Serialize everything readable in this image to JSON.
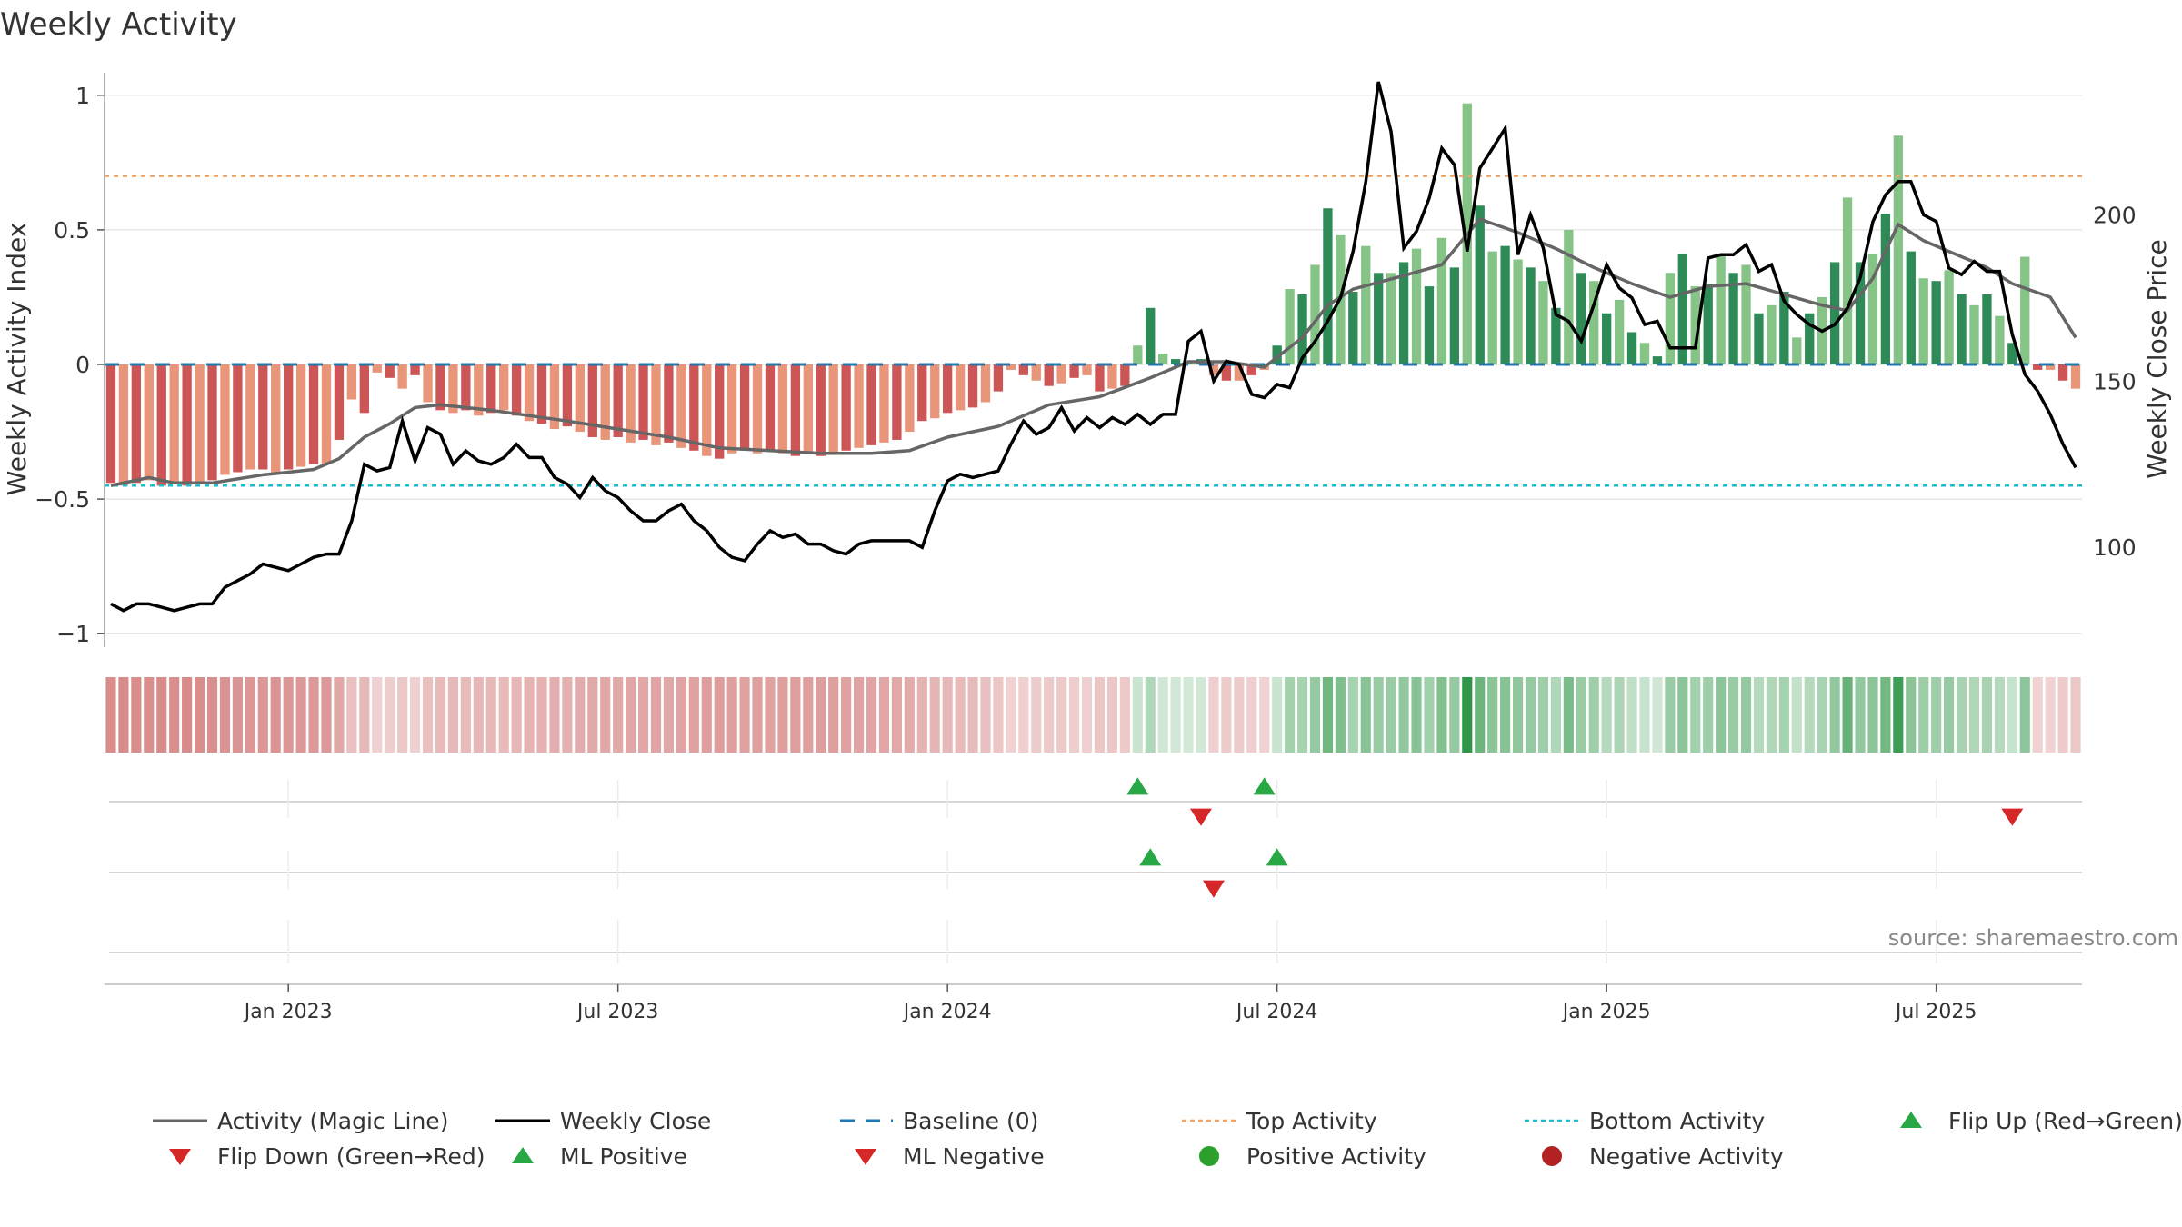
{
  "chart_data": {
    "type": "bar",
    "title": "Weekly Activity",
    "source": "source: sharemaestro.com",
    "y_left": {
      "label": "Weekly Activity Index",
      "range": [
        -1.05,
        1.05
      ],
      "ticks": [
        1,
        0.5,
        0,
        -0.5,
        -1
      ],
      "tick_labels": [
        "1",
        "0.5",
        "0",
        "−0.5",
        "−1"
      ]
    },
    "y_right": {
      "label": "Weekly Close Price",
      "range": [
        70,
        240
      ],
      "ticks": [
        200,
        150,
        100
      ],
      "tick_labels": [
        "200",
        "150",
        "100"
      ]
    },
    "x_ticks": [
      {
        "label": "Jan 2023",
        "week": 14
      },
      {
        "label": "Jul 2023",
        "week": 40
      },
      {
        "label": "Jan 2024",
        "week": 66
      },
      {
        "label": "Jul 2024",
        "week": 92
      },
      {
        "label": "Jan 2025",
        "week": 118
      },
      {
        "label": "Jul 2025",
        "week": 144
      }
    ],
    "levels": {
      "top": 0.7,
      "bottom": -0.45,
      "baseline": 0
    },
    "weeks": 156,
    "activity_keypoints": [
      [
        0,
        -0.44
      ],
      [
        1,
        -0.45
      ],
      [
        2,
        -0.44
      ],
      [
        3,
        -0.43
      ],
      [
        4,
        -0.45
      ],
      [
        5,
        -0.44
      ],
      [
        6,
        -0.45
      ],
      [
        7,
        -0.44
      ],
      [
        8,
        -0.43
      ],
      [
        9,
        -0.41
      ],
      [
        10,
        -0.4
      ],
      [
        11,
        -0.39
      ],
      [
        12,
        -0.39
      ],
      [
        13,
        -0.4
      ],
      [
        14,
        -0.39
      ],
      [
        15,
        -0.38
      ],
      [
        16,
        -0.37
      ],
      [
        17,
        -0.37
      ],
      [
        18,
        -0.28
      ],
      [
        19,
        -0.13
      ],
      [
        20,
        -0.18
      ],
      [
        21,
        -0.03
      ],
      [
        22,
        -0.05
      ],
      [
        23,
        -0.09
      ],
      [
        24,
        -0.04
      ],
      [
        25,
        -0.14
      ],
      [
        26,
        -0.17
      ],
      [
        27,
        -0.18
      ],
      [
        28,
        -0.17
      ],
      [
        29,
        -0.19
      ],
      [
        30,
        -0.18
      ],
      [
        31,
        -0.17
      ],
      [
        32,
        -0.19
      ],
      [
        33,
        -0.21
      ],
      [
        34,
        -0.22
      ],
      [
        35,
        -0.24
      ],
      [
        36,
        -0.23
      ],
      [
        37,
        -0.25
      ],
      [
        38,
        -0.27
      ],
      [
        39,
        -0.28
      ],
      [
        40,
        -0.27
      ],
      [
        41,
        -0.29
      ],
      [
        42,
        -0.28
      ],
      [
        43,
        -0.3
      ],
      [
        44,
        -0.29
      ],
      [
        45,
        -0.31
      ],
      [
        46,
        -0.32
      ],
      [
        47,
        -0.34
      ],
      [
        48,
        -0.35
      ],
      [
        49,
        -0.33
      ],
      [
        50,
        -0.32
      ],
      [
        51,
        -0.33
      ],
      [
        52,
        -0.32
      ],
      [
        53,
        -0.33
      ],
      [
        54,
        -0.34
      ],
      [
        55,
        -0.33
      ],
      [
        56,
        -0.34
      ],
      [
        57,
        -0.33
      ],
      [
        58,
        -0.32
      ],
      [
        59,
        -0.31
      ],
      [
        60,
        -0.3
      ],
      [
        61,
        -0.29
      ],
      [
        62,
        -0.28
      ],
      [
        63,
        -0.25
      ],
      [
        64,
        -0.21
      ],
      [
        65,
        -0.2
      ],
      [
        66,
        -0.18
      ],
      [
        67,
        -0.17
      ],
      [
        68,
        -0.16
      ],
      [
        69,
        -0.14
      ],
      [
        70,
        -0.1
      ],
      [
        71,
        -0.02
      ],
      [
        72,
        -0.04
      ],
      [
        73,
        -0.06
      ],
      [
        74,
        -0.08
      ],
      [
        75,
        -0.07
      ],
      [
        76,
        -0.05
      ],
      [
        77,
        -0.04
      ],
      [
        78,
        -0.1
      ],
      [
        79,
        -0.09
      ],
      [
        80,
        -0.08
      ],
      [
        81,
        0.07
      ],
      [
        82,
        0.21
      ],
      [
        83,
        0.04
      ],
      [
        84,
        0.02
      ],
      [
        85,
        0.01
      ],
      [
        86,
        0.02
      ],
      [
        87,
        -0.04
      ],
      [
        88,
        -0.06
      ],
      [
        89,
        -0.06
      ],
      [
        90,
        -0.04
      ],
      [
        91,
        -0.02
      ],
      [
        92,
        0.07
      ],
      [
        93,
        0.28
      ],
      [
        94,
        0.26
      ],
      [
        95,
        0.37
      ],
      [
        96,
        0.58
      ],
      [
        97,
        0.48
      ],
      [
        98,
        0.27
      ],
      [
        99,
        0.44
      ],
      [
        100,
        0.34
      ],
      [
        101,
        0.34
      ],
      [
        102,
        0.38
      ],
      [
        103,
        0.43
      ],
      [
        104,
        0.29
      ],
      [
        105,
        0.47
      ],
      [
        106,
        0.36
      ],
      [
        107,
        0.97
      ],
      [
        108,
        0.59
      ],
      [
        109,
        0.42
      ],
      [
        110,
        0.44
      ],
      [
        111,
        0.39
      ],
      [
        112,
        0.36
      ],
      [
        113,
        0.31
      ],
      [
        114,
        0.21
      ],
      [
        115,
        0.5
      ],
      [
        116,
        0.34
      ],
      [
        117,
        0.31
      ],
      [
        118,
        0.19
      ],
      [
        119,
        0.24
      ],
      [
        120,
        0.12
      ],
      [
        121,
        0.08
      ],
      [
        122,
        0.03
      ],
      [
        123,
        0.34
      ],
      [
        124,
        0.41
      ],
      [
        125,
        0.29
      ],
      [
        126,
        0.3
      ],
      [
        127,
        0.41
      ],
      [
        128,
        0.34
      ],
      [
        129,
        0.37
      ],
      [
        130,
        0.19
      ],
      [
        131,
        0.22
      ],
      [
        132,
        0.27
      ],
      [
        133,
        0.1
      ],
      [
        134,
        0.19
      ],
      [
        135,
        0.25
      ],
      [
        136,
        0.38
      ],
      [
        137,
        0.62
      ],
      [
        138,
        0.38
      ],
      [
        139,
        0.41
      ],
      [
        140,
        0.56
      ],
      [
        141,
        0.85
      ],
      [
        142,
        0.42
      ],
      [
        143,
        0.32
      ],
      [
        144,
        0.31
      ],
      [
        145,
        0.35
      ],
      [
        146,
        0.26
      ],
      [
        147,
        0.22
      ],
      [
        148,
        0.26
      ],
      [
        149,
        0.18
      ],
      [
        150,
        0.08
      ],
      [
        151,
        0.4
      ],
      [
        152,
        -0.02
      ],
      [
        153,
        -0.02
      ],
      [
        154,
        -0.06
      ],
      [
        155,
        -0.09
      ]
    ],
    "magic_line_keypoints": [
      [
        0,
        -0.45
      ],
      [
        3,
        -0.42
      ],
      [
        5,
        -0.44
      ],
      [
        8,
        -0.44
      ],
      [
        12,
        -0.41
      ],
      [
        16,
        -0.39
      ],
      [
        18,
        -0.35
      ],
      [
        20,
        -0.27
      ],
      [
        22,
        -0.22
      ],
      [
        24,
        -0.16
      ],
      [
        26,
        -0.15
      ],
      [
        28,
        -0.16
      ],
      [
        30,
        -0.17
      ],
      [
        33,
        -0.19
      ],
      [
        36,
        -0.21
      ],
      [
        40,
        -0.24
      ],
      [
        44,
        -0.27
      ],
      [
        48,
        -0.31
      ],
      [
        52,
        -0.32
      ],
      [
        56,
        -0.33
      ],
      [
        60,
        -0.33
      ],
      [
        63,
        -0.32
      ],
      [
        66,
        -0.27
      ],
      [
        70,
        -0.23
      ],
      [
        74,
        -0.15
      ],
      [
        78,
        -0.12
      ],
      [
        82,
        -0.05
      ],
      [
        85,
        0.01
      ],
      [
        88,
        0.01
      ],
      [
        91,
        -0.01
      ],
      [
        94,
        0.1
      ],
      [
        96,
        0.22
      ],
      [
        98,
        0.28
      ],
      [
        102,
        0.33
      ],
      [
        105,
        0.37
      ],
      [
        108,
        0.54
      ],
      [
        111,
        0.49
      ],
      [
        114,
        0.43
      ],
      [
        117,
        0.36
      ],
      [
        120,
        0.3
      ],
      [
        123,
        0.25
      ],
      [
        126,
        0.29
      ],
      [
        129,
        0.3
      ],
      [
        132,
        0.26
      ],
      [
        135,
        0.22
      ],
      [
        137,
        0.2
      ],
      [
        139,
        0.32
      ],
      [
        141,
        0.52
      ],
      [
        143,
        0.46
      ],
      [
        146,
        0.4
      ],
      [
        148,
        0.36
      ],
      [
        150,
        0.3
      ],
      [
        153,
        0.25
      ],
      [
        155,
        0.1
      ]
    ],
    "weekly_close_keypoints": [
      [
        0,
        83
      ],
      [
        1,
        81
      ],
      [
        2,
        83
      ],
      [
        3,
        83
      ],
      [
        4,
        82
      ],
      [
        5,
        81
      ],
      [
        6,
        82
      ],
      [
        7,
        83
      ],
      [
        8,
        83
      ],
      [
        9,
        88
      ],
      [
        10,
        90
      ],
      [
        11,
        92
      ],
      [
        12,
        95
      ],
      [
        13,
        94
      ],
      [
        14,
        93
      ],
      [
        15,
        95
      ],
      [
        16,
        97
      ],
      [
        17,
        98
      ],
      [
        18,
        98
      ],
      [
        19,
        108
      ],
      [
        20,
        125
      ],
      [
        21,
        123
      ],
      [
        22,
        124
      ],
      [
        23,
        138
      ],
      [
        24,
        126
      ],
      [
        25,
        136
      ],
      [
        26,
        134
      ],
      [
        27,
        125
      ],
      [
        28,
        129
      ],
      [
        29,
        126
      ],
      [
        30,
        125
      ],
      [
        31,
        127
      ],
      [
        32,
        131
      ],
      [
        33,
        127
      ],
      [
        34,
        127
      ],
      [
        35,
        121
      ],
      [
        36,
        119
      ],
      [
        37,
        115
      ],
      [
        38,
        121
      ],
      [
        39,
        117
      ],
      [
        40,
        115
      ],
      [
        41,
        111
      ],
      [
        42,
        108
      ],
      [
        43,
        108
      ],
      [
        44,
        111
      ],
      [
        45,
        113
      ],
      [
        46,
        108
      ],
      [
        47,
        105
      ],
      [
        48,
        100
      ],
      [
        49,
        97
      ],
      [
        50,
        96
      ],
      [
        51,
        101
      ],
      [
        52,
        105
      ],
      [
        53,
        103
      ],
      [
        54,
        104
      ],
      [
        55,
        101
      ],
      [
        56,
        101
      ],
      [
        57,
        99
      ],
      [
        58,
        98
      ],
      [
        59,
        101
      ],
      [
        60,
        102
      ],
      [
        61,
        102
      ],
      [
        62,
        102
      ],
      [
        63,
        102
      ],
      [
        64,
        100
      ],
      [
        65,
        111
      ],
      [
        66,
        120
      ],
      [
        67,
        122
      ],
      [
        68,
        121
      ],
      [
        69,
        122
      ],
      [
        70,
        123
      ],
      [
        71,
        131
      ],
      [
        72,
        138
      ],
      [
        73,
        134
      ],
      [
        74,
        136
      ],
      [
        75,
        142
      ],
      [
        76,
        135
      ],
      [
        77,
        139
      ],
      [
        78,
        136
      ],
      [
        79,
        139
      ],
      [
        80,
        137
      ],
      [
        81,
        140
      ],
      [
        82,
        137
      ],
      [
        83,
        140
      ],
      [
        84,
        140
      ],
      [
        85,
        162
      ],
      [
        86,
        165
      ],
      [
        87,
        150
      ],
      [
        88,
        156
      ],
      [
        89,
        155
      ],
      [
        90,
        146
      ],
      [
        91,
        145
      ],
      [
        92,
        149
      ],
      [
        93,
        148
      ],
      [
        94,
        157
      ],
      [
        95,
        162
      ],
      [
        96,
        168
      ],
      [
        97,
        175
      ],
      [
        98,
        189
      ],
      [
        99,
        210
      ],
      [
        100,
        240
      ],
      [
        101,
        225
      ],
      [
        102,
        190
      ],
      [
        103,
        195
      ],
      [
        104,
        205
      ],
      [
        105,
        220
      ],
      [
        106,
        215
      ],
      [
        107,
        189
      ],
      [
        108,
        214
      ],
      [
        109,
        220
      ],
      [
        110,
        226
      ],
      [
        111,
        188
      ],
      [
        112,
        200
      ],
      [
        113,
        190
      ],
      [
        114,
        170
      ],
      [
        115,
        168
      ],
      [
        116,
        162
      ],
      [
        117,
        173
      ],
      [
        118,
        185
      ],
      [
        119,
        178
      ],
      [
        120,
        175
      ],
      [
        121,
        167
      ],
      [
        122,
        168
      ],
      [
        123,
        160
      ],
      [
        124,
        160
      ],
      [
        125,
        160
      ],
      [
        126,
        187
      ],
      [
        127,
        188
      ],
      [
        128,
        188
      ],
      [
        129,
        191
      ],
      [
        130,
        183
      ],
      [
        131,
        185
      ],
      [
        132,
        174
      ],
      [
        133,
        170
      ],
      [
        134,
        167
      ],
      [
        135,
        165
      ],
      [
        136,
        167
      ],
      [
        137,
        172
      ],
      [
        138,
        181
      ],
      [
        139,
        198
      ],
      [
        140,
        206
      ],
      [
        141,
        210
      ],
      [
        142,
        210
      ],
      [
        143,
        200
      ],
      [
        144,
        198
      ],
      [
        145,
        184
      ],
      [
        146,
        182
      ],
      [
        147,
        186
      ],
      [
        148,
        183
      ],
      [
        149,
        183
      ],
      [
        150,
        164
      ],
      [
        151,
        152
      ],
      [
        152,
        147
      ],
      [
        153,
        140
      ],
      [
        154,
        131
      ],
      [
        155,
        124
      ]
    ],
    "signal_rows": {
      "flip_up": [
        81,
        91
      ],
      "flip_down": [
        86,
        150
      ],
      "ml_positive": [
        82,
        92
      ],
      "ml_negative": [
        87
      ]
    },
    "legend": [
      {
        "label": "Activity (Magic Line)",
        "marker": "solid-line",
        "color": "#666666"
      },
      {
        "label": "Weekly Close",
        "marker": "solid-line",
        "color": "#000000"
      },
      {
        "label": "Baseline (0)",
        "marker": "dashed-line",
        "color": "#1f77b4"
      },
      {
        "label": "Top Activity",
        "marker": "dotted-line",
        "color": "#f4a261"
      },
      {
        "label": "Bottom Activity",
        "marker": "dotted-line",
        "color": "#17becf"
      },
      {
        "label": "Flip Up (Red→Green)",
        "marker": "triangle-up",
        "color": "#27a844"
      },
      {
        "label": "Flip Down (Green→Red)",
        "marker": "triangle-down",
        "color": "#d62728"
      },
      {
        "label": "ML Positive",
        "marker": "triangle-up",
        "color": "#27a844"
      },
      {
        "label": "ML Negative",
        "marker": "triangle-down",
        "color": "#d62728"
      },
      {
        "label": "Positive Activity",
        "marker": "circle",
        "color": "#2ca02c"
      },
      {
        "label": "Negative Activity",
        "marker": "circle",
        "color": "#b22222"
      }
    ],
    "colors": {
      "pos_dark": "#2e8b57",
      "pos_light": "#86c386",
      "neg_dark": "#cc5555",
      "neg_light": "#e8957a",
      "magic": "#666666",
      "close": "#000000",
      "baseline": "#1f77b4",
      "top": "#f4a261",
      "bottom": "#17becf",
      "grid": "#e6e6e6"
    }
  }
}
